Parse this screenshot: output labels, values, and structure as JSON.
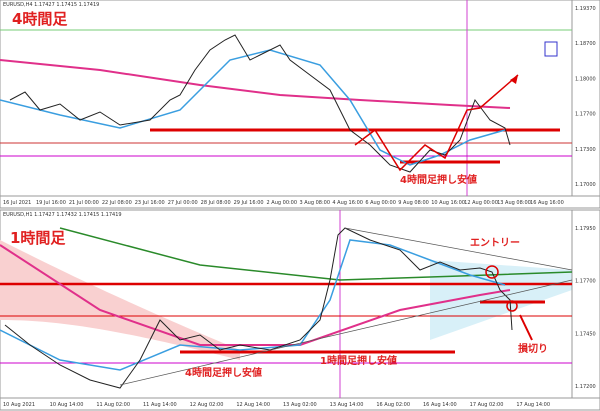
{
  "top": {
    "header": "EURUSD,H4 1.17427 1.17415 1.17419",
    "title": "4時間足",
    "annotation": "4時間足押し安値",
    "price_labels": [
      "1.19370",
      "1.18700",
      "1.18000",
      "1.17700",
      "1.17300",
      "1.17000"
    ],
    "time_labels": [
      "16 Jul 2021",
      "19 Jul 16:00",
      "21 Jul 00:00",
      "22 Jul 08:00",
      "23 Jul 16:00",
      "27 Jul 00:00",
      "28 Jul 08:00",
      "29 Jul 16:00",
      "2 Aug 00:00",
      "3 Aug 08:00",
      "4 Aug 16:00",
      "6 Aug 00:00",
      "9 Aug 08:00",
      "10 Aug 16:00",
      "12 Aug 00:00",
      "13 Aug 08:00",
      "16 Aug 16:00"
    ]
  },
  "bottom": {
    "header": "EURUSD,H1 1.17427 1.17432 1.17415 1.17419",
    "title": "1時間足",
    "entry": "エントリー",
    "stop": "損切り",
    "annotation_1h": "1時間足押し安値",
    "annotation_4h": "4時間足押し安値",
    "price_labels": [
      "1.17950",
      "1.17700",
      "1.17450",
      "1.17200"
    ],
    "time_labels": [
      "10 Aug 2021",
      "10 Aug 14:00",
      "11 Aug 02:00",
      "11 Aug 14:00",
      "12 Aug 02:00",
      "12 Aug 14:00",
      "13 Aug 02:00",
      "13 Aug 14:00",
      "16 Aug 02:00",
      "16 Aug 14:00",
      "17 Aug 02:00",
      "17 Aug 14:00"
    ]
  }
}
